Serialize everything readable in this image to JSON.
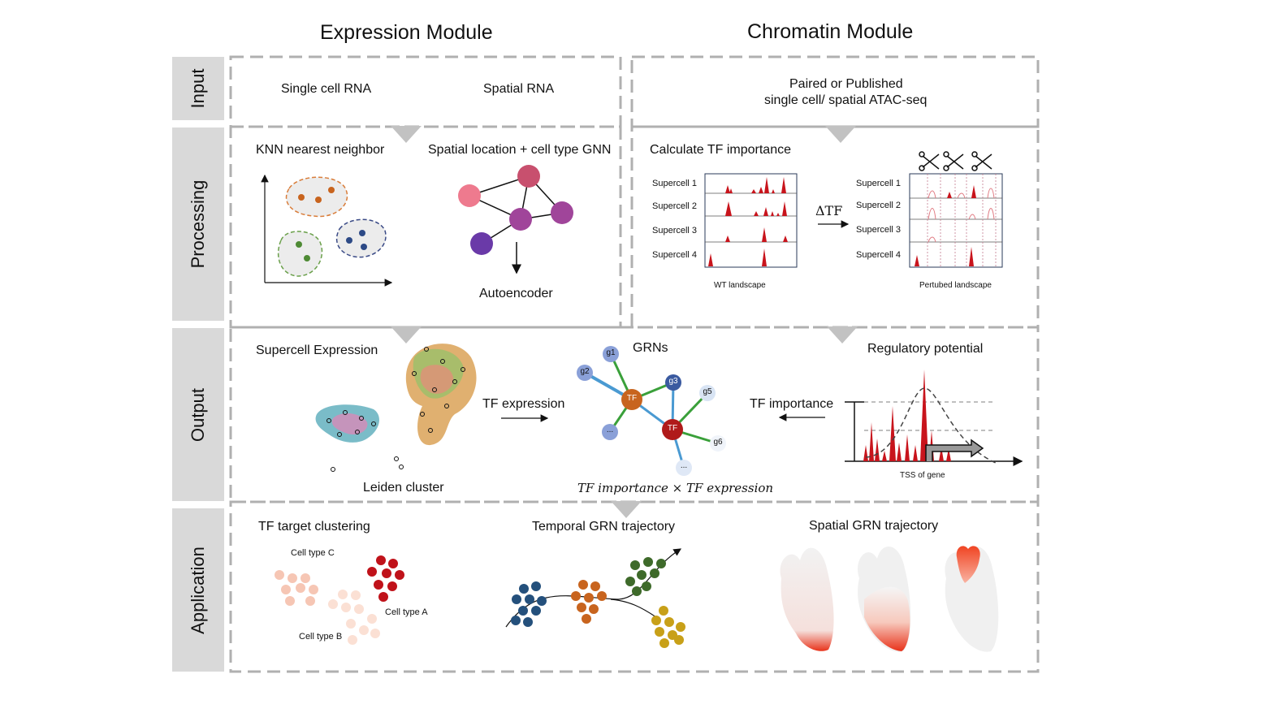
{
  "modules": {
    "expression": "Expression Module",
    "chromatin": "Chromatin Module"
  },
  "rows": {
    "input": "Input",
    "processing": "Processing",
    "output": "Output",
    "application": "Application"
  },
  "input": {
    "single_cell_rna": "Single cell RNA",
    "spatial_rna": "Spatial RNA",
    "atac_line1": "Paired or Published",
    "atac_line2": "single cell/ spatial ATAC-seq"
  },
  "processing": {
    "knn": "KNN nearest neighbor",
    "gnn": "Spatial location + cell type GNN",
    "autoencoder": "Autoencoder",
    "tf_importance": "Calculate TF importance",
    "delta_tf": "ΔTF",
    "supercells": [
      "Supercell 1",
      "Supercell 2",
      "Supercell 3",
      "Supercell 4"
    ],
    "wt_landscape": "WT landscape",
    "perturbed_landscape": "Pertubed landscape"
  },
  "output": {
    "supercell_expression": "Supercell Expression",
    "leiden_cluster": "Leiden cluster",
    "tf_expression": "TF expression",
    "grns": "GRNs",
    "formula": "TF importance × TF expression",
    "regulatory_potential": "Regulatory potential",
    "tf_importance": "TF importance",
    "tss": "TSS of gene",
    "grn_nodes": [
      "g1",
      "g2",
      "g3",
      "g5",
      "g6",
      "TF",
      "TF",
      "...",
      "..."
    ]
  },
  "application": {
    "tf_target_clustering": "TF target clustering",
    "cell_type_a": "Cell type A",
    "cell_type_b": "Cell type B",
    "cell_type_c": "Cell type C",
    "temporal": "Temporal GRN trajectory",
    "spatial": "Spatial GRN trajectory"
  },
  "colors": {
    "label_gray": "#d9d9d9",
    "border_gray": "#b0b0b0",
    "peak_red": "#c8141c",
    "cluster_orange": "#c8641e",
    "cluster_blue": "#2d4a86",
    "cluster_green": "#4e8a34",
    "node_pink": "#c8506e",
    "node_purple": "#a0459a",
    "node_violet": "#6a3aa8",
    "edge_green": "#3aa03a",
    "edge_blue": "#4a9ad2"
  }
}
